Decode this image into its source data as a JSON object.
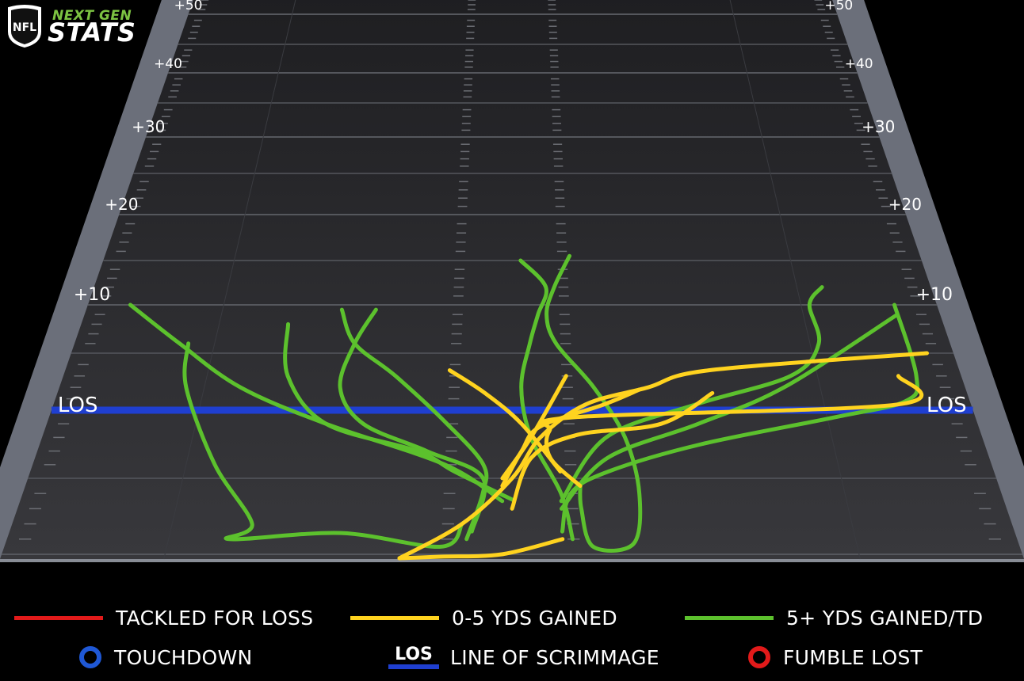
{
  "brand": {
    "line1": "NEXT GEN",
    "line2": "STATS",
    "shield_text": "NFL"
  },
  "colors": {
    "tackled_for_loss": "#e21a1a",
    "short_gain": "#ffd31f",
    "long_gain": "#5cc12d",
    "los": "#1f3fd0",
    "touchdown": "#1f58d6",
    "fumble": "#e21a1a",
    "field": "#2b2b2e",
    "sideline": "#6b6f7a"
  },
  "chart_data": {
    "type": "line",
    "title": "",
    "y_axis_label": "",
    "ylim": [
      -10,
      50
    ],
    "yard_markers": [
      {
        "yards": 50,
        "label": "+50"
      },
      {
        "yards": 40,
        "label": "+40"
      },
      {
        "yards": 30,
        "label": "+30"
      },
      {
        "yards": 20,
        "label": "+20"
      },
      {
        "yards": 10,
        "label": "+10"
      },
      {
        "yards": 0,
        "label": "LOS"
      }
    ],
    "series": [
      {
        "outcome": "5+ YDS GAINED/TD",
        "points": [
          [
            0.05,
            10
          ],
          [
            0.12,
            6
          ],
          [
            0.2,
            2
          ],
          [
            0.3,
            -1
          ],
          [
            0.43,
            -4
          ],
          [
            0.49,
            -6.5
          ]
        ]
      },
      {
        "outcome": "5+ YDS GAINED/TD",
        "points": [
          [
            0.13,
            6
          ],
          [
            0.14,
            2
          ],
          [
            0.19,
            -4
          ],
          [
            0.24,
            -8
          ],
          [
            0.22,
            -9
          ],
          [
            0.33,
            -8.6
          ],
          [
            0.43,
            -9.5
          ],
          [
            0.45,
            -8
          ]
        ]
      },
      {
        "outcome": "5+ YDS GAINED/TD",
        "points": [
          [
            0.24,
            8
          ],
          [
            0.25,
            3
          ],
          [
            0.3,
            -1
          ],
          [
            0.4,
            -3
          ],
          [
            0.44,
            -4.5
          ],
          [
            0.5,
            -6.4
          ]
        ]
      },
      {
        "outcome": "5+ YDS GAINED/TD",
        "points": [
          [
            0.3,
            9.5
          ],
          [
            0.32,
            6
          ],
          [
            0.37,
            3
          ],
          [
            0.43,
            -1
          ],
          [
            0.47,
            -4
          ],
          [
            0.47,
            -6
          ],
          [
            0.455,
            -9
          ]
        ]
      },
      {
        "outcome": "5+ YDS GAINED/TD",
        "points": [
          [
            0.34,
            9.5
          ],
          [
            0.32,
            6
          ],
          [
            0.31,
            2
          ],
          [
            0.34,
            -1
          ],
          [
            0.41,
            -3
          ],
          [
            0.47,
            -5
          ],
          [
            0.46,
            -8.5
          ]
        ]
      },
      {
        "outcome": "5+ YDS GAINED/TD",
        "points": [
          [
            0.51,
            15
          ],
          [
            0.54,
            12
          ],
          [
            0.53,
            9
          ],
          [
            0.52,
            6
          ],
          [
            0.51,
            2
          ],
          [
            0.52,
            -2
          ],
          [
            0.55,
            -6
          ],
          [
            0.56,
            -9
          ]
        ]
      },
      {
        "outcome": "5+ YDS GAINED/TD",
        "points": [
          [
            0.57,
            15.5
          ],
          [
            0.55,
            12
          ],
          [
            0.54,
            9
          ],
          [
            0.55,
            6
          ],
          [
            0.59,
            2
          ],
          [
            0.62,
            -2
          ],
          [
            0.63,
            -6
          ],
          [
            0.62,
            -9.3
          ],
          [
            0.58,
            -9.5
          ],
          [
            0.57,
            -7
          ],
          [
            0.57,
            -5.5
          ]
        ]
      },
      {
        "outcome": "5+ YDS GAINED/TD",
        "points": [
          [
            0.55,
            -8.5
          ],
          [
            0.56,
            -6
          ],
          [
            0.6,
            -4.5
          ],
          [
            0.7,
            -2.5
          ],
          [
            0.85,
            -0.5
          ],
          [
            0.93,
            0.8
          ],
          [
            0.95,
            3
          ],
          [
            0.95,
            10
          ]
        ]
      },
      {
        "outcome": "5+ YDS GAINED/TD",
        "points": [
          [
            0.55,
            -7
          ],
          [
            0.6,
            -3.5
          ],
          [
            0.7,
            -1
          ],
          [
            0.8,
            2
          ],
          [
            0.95,
            9
          ]
        ]
      },
      {
        "outcome": "5+ YDS GAINED/TD",
        "points": [
          [
            0.87,
            12
          ],
          [
            0.85,
            10
          ],
          [
            0.85,
            6
          ],
          [
            0.81,
            3
          ],
          [
            0.7,
            0.5
          ],
          [
            0.6,
            -2
          ],
          [
            0.55,
            -6.5
          ]
        ]
      },
      {
        "outcome": "0-5 YDS GAINED",
        "points": [
          [
            0.43,
            3.5
          ],
          [
            0.47,
            1.5
          ],
          [
            0.51,
            -1
          ],
          [
            0.55,
            -4.5
          ]
        ]
      },
      {
        "outcome": "0-5 YDS GAINED",
        "points": [
          [
            0.39,
            -11
          ],
          [
            0.45,
            -8
          ],
          [
            0.5,
            -5
          ],
          [
            0.53,
            -2
          ],
          [
            0.58,
            0.5
          ],
          [
            0.65,
            2
          ],
          [
            0.72,
            3.5
          ],
          [
            0.97,
            5
          ]
        ]
      },
      {
        "outcome": "0-5 YDS GAINED",
        "points": [
          [
            0.49,
            -5
          ],
          [
            0.52,
            -2
          ],
          [
            0.56,
            3
          ]
        ]
      },
      {
        "outcome": "0-5 YDS GAINED",
        "points": [
          [
            0.5,
            -7
          ],
          [
            0.52,
            -3.5
          ],
          [
            0.57,
            -1.8
          ],
          [
            0.66,
            -1
          ],
          [
            0.72,
            1.5
          ]
        ]
      },
      {
        "outcome": "0-5 YDS GAINED",
        "points": [
          [
            0.49,
            -5.5
          ],
          [
            0.51,
            -3
          ],
          [
            0.53,
            -1.2
          ],
          [
            0.6,
            0.5
          ],
          [
            0.64,
            1.8
          ]
        ]
      },
      {
        "outcome": "0-5 YDS GAINED",
        "points": [
          [
            0.57,
            -5.5
          ],
          [
            0.54,
            -3.5
          ],
          [
            0.54,
            -1.5
          ],
          [
            0.57,
            -0.5
          ],
          [
            0.92,
            0.5
          ],
          [
            0.93,
            3
          ]
        ]
      },
      {
        "outcome": "0-5 YDS GAINED",
        "points": [
          [
            0.55,
            -9
          ],
          [
            0.49,
            -10
          ],
          [
            0.43,
            -10.6
          ],
          [
            0.39,
            -11
          ]
        ]
      }
    ]
  },
  "legend": {
    "tackled_for_loss": "TACKLED FOR LOSS",
    "short_gain": "0-5 YDS GAINED",
    "long_gain": "5+ YDS GAINED/TD",
    "touchdown": "TOUCHDOWN",
    "los_abbr": "LOS",
    "line_of_scrimmage": "LINE OF SCRIMMAGE",
    "fumble": "FUMBLE LOST"
  }
}
